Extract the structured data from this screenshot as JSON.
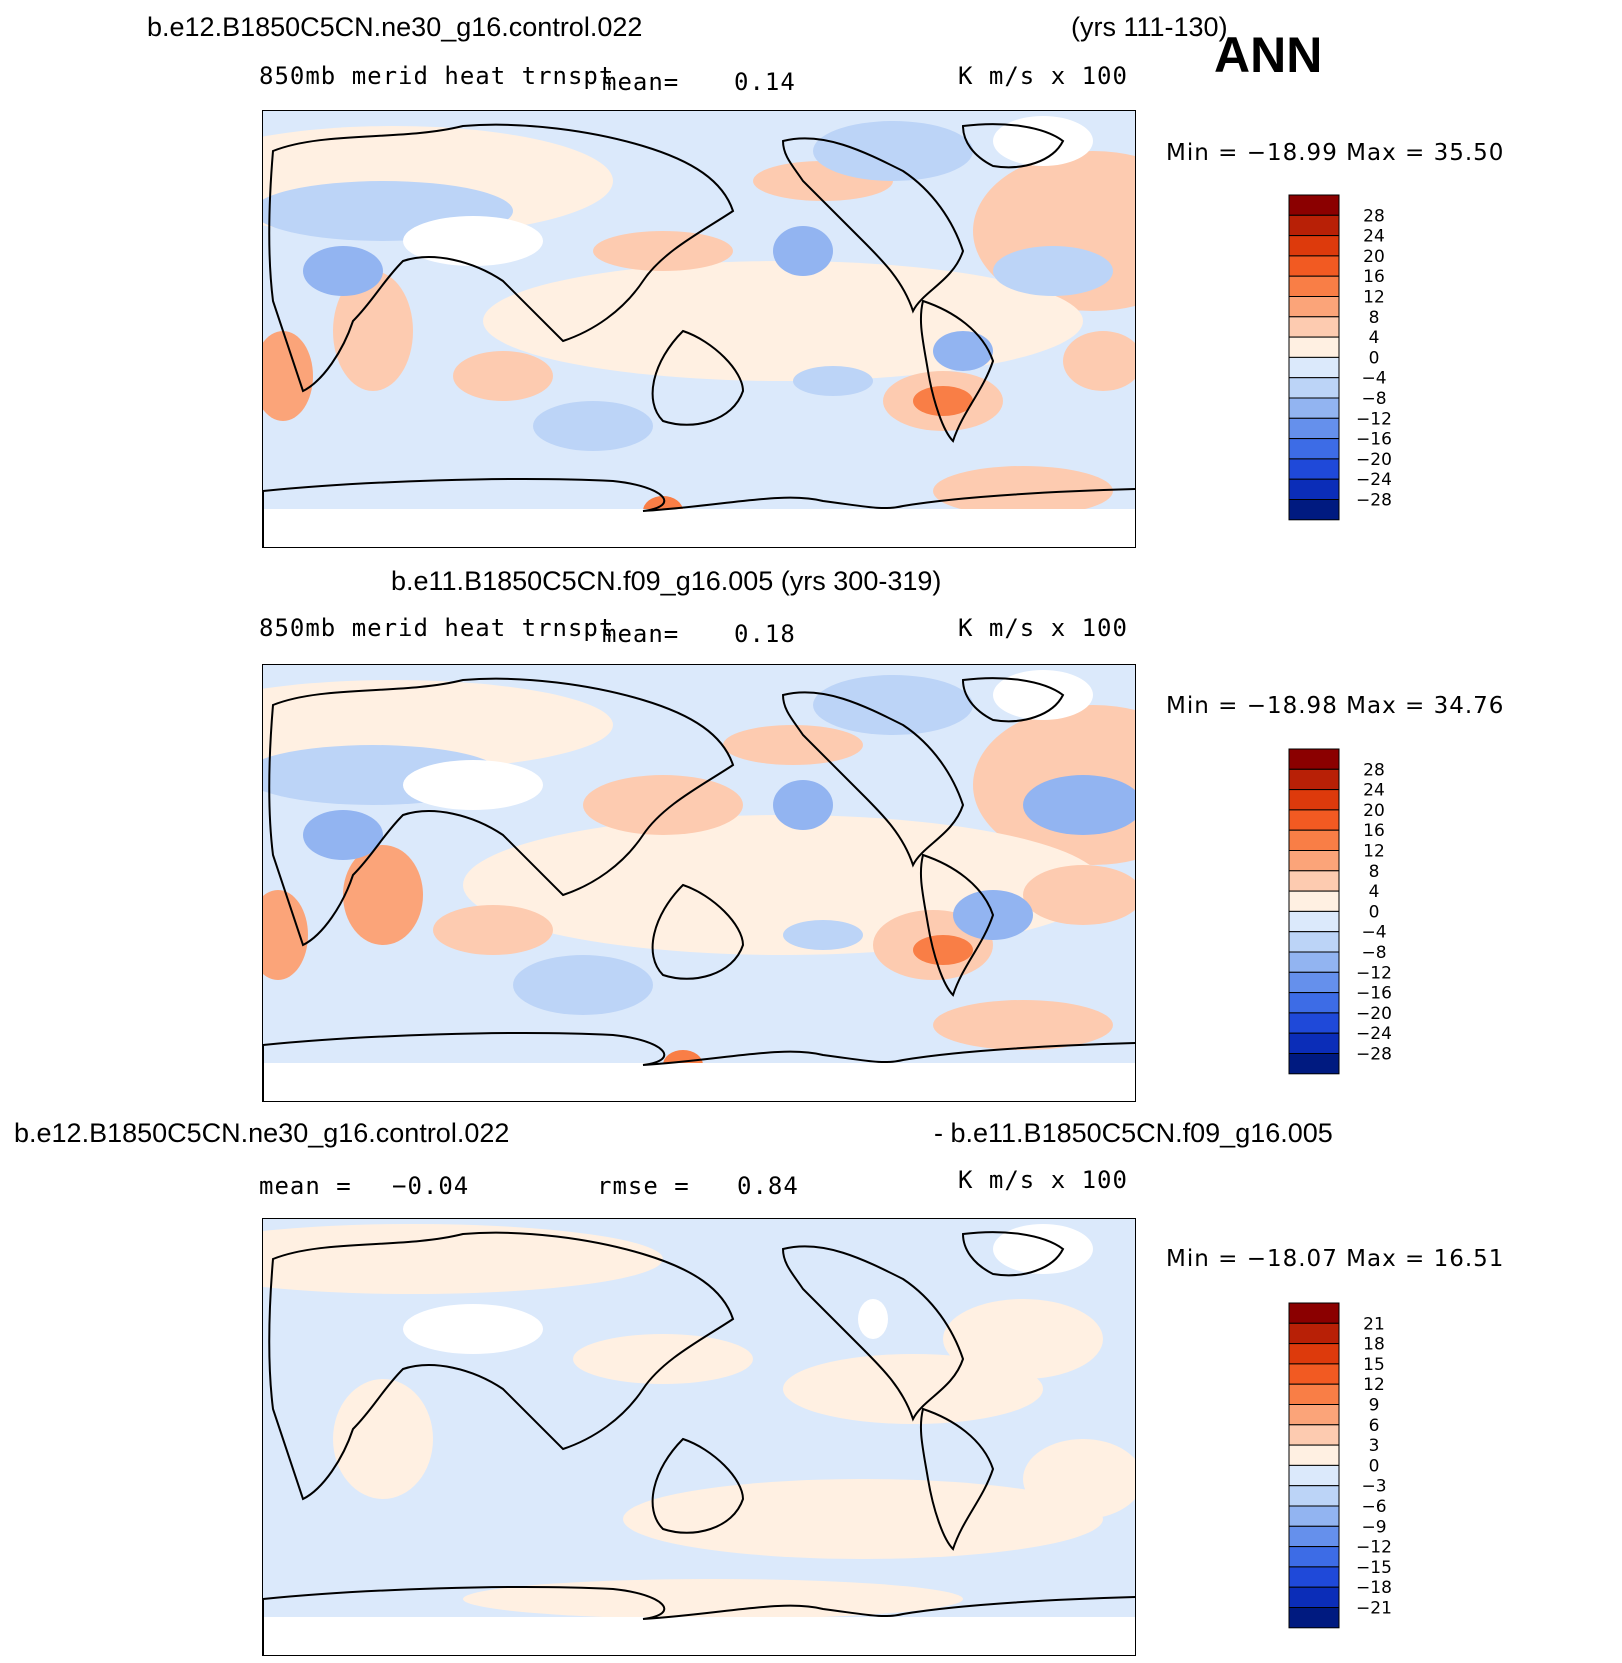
{
  "header": {
    "case1": "b.e12.B1850C5CN.ne30_g16.control.022",
    "years1": "(yrs 111-130)",
    "season": "ANN",
    "case2_full": "b.e11.B1850C5CN.f09_g16.005 (yrs 300-319)",
    "diff_left": "b.e12.B1850C5CN.ne30_g16.control.022",
    "diff_right": "- b.e11.B1850C5CN.f09_g16.005"
  },
  "panels": [
    {
      "id": "top",
      "variable": "850mb merid heat trnspt",
      "mean_label": "mean=",
      "mean_value": "0.14",
      "units": "K m/s x 100",
      "minmax": "Min = −18.99 Max =   35.50"
    },
    {
      "id": "middle",
      "variable": "850mb merid heat trnspt",
      "mean_label": "mean=",
      "mean_value": "0.18",
      "units": "K m/s x 100",
      "minmax": "Min = −18.98 Max =   34.76"
    },
    {
      "id": "bottom",
      "mean_label": "mean =",
      "mean_value": "−0.04",
      "rmse_label": "rmse =",
      "rmse_value": "0.84",
      "units": "K m/s x 100",
      "minmax": "Min = −18.07 Max =   16.51"
    }
  ],
  "chart_data": [
    {
      "type": "heatmap",
      "title": "b.e12.B1850C5CN.ne30_g16.control.022 (yrs 111-130) ANN",
      "variable": "850mb merid heat trnspt",
      "units": "K m/s x 100",
      "mean": 0.14,
      "min": -18.99,
      "max": 35.5,
      "contour_levels": [
        28,
        24,
        20,
        16,
        12,
        8,
        4,
        0,
        -4,
        -8,
        -12,
        -16,
        -20,
        -24,
        -28
      ],
      "colors": [
        "#8b0000",
        "#b82006",
        "#dd3a0c",
        "#f25a22",
        "#f97e46",
        "#fba479",
        "#fdcbb0",
        "#fff0e2",
        "#dbe9fb",
        "#bcd4f7",
        "#92b4f1",
        "#6590ec",
        "#3d6ce6",
        "#1f49d9",
        "#0b2db8",
        "#001a80"
      ]
    },
    {
      "type": "heatmap",
      "title": "b.e11.B1850C5CN.f09_g16.005 (yrs 300-319)",
      "variable": "850mb merid heat trnspt",
      "units": "K m/s x 100",
      "mean": 0.18,
      "min": -18.98,
      "max": 34.76,
      "contour_levels": [
        28,
        24,
        20,
        16,
        12,
        8,
        4,
        0,
        -4,
        -8,
        -12,
        -16,
        -20,
        -24,
        -28
      ],
      "colors": [
        "#8b0000",
        "#b82006",
        "#dd3a0c",
        "#f25a22",
        "#f97e46",
        "#fba479",
        "#fdcbb0",
        "#fff0e2",
        "#dbe9fb",
        "#bcd4f7",
        "#92b4f1",
        "#6590ec",
        "#3d6ce6",
        "#1f49d9",
        "#0b2db8",
        "#001a80"
      ]
    },
    {
      "type": "heatmap",
      "title": "b.e12.B1850C5CN.ne30_g16.control.022 - b.e11.B1850C5CN.f09_g16.005",
      "units": "K m/s x 100",
      "mean": -0.04,
      "rmse": 0.84,
      "min": -18.07,
      "max": 16.51,
      "contour_levels": [
        21,
        18,
        15,
        12,
        9,
        6,
        3,
        0,
        -3,
        -6,
        -9,
        -12,
        -15,
        -18,
        -21
      ],
      "colors": [
        "#8b0000",
        "#b82006",
        "#dd3a0c",
        "#f25a22",
        "#f97e46",
        "#fba479",
        "#fdcbb0",
        "#fff0e2",
        "#dbe9fb",
        "#bcd4f7",
        "#92b4f1",
        "#6590ec",
        "#3d6ce6",
        "#1f49d9",
        "#0b2db8",
        "#001a80"
      ]
    }
  ]
}
